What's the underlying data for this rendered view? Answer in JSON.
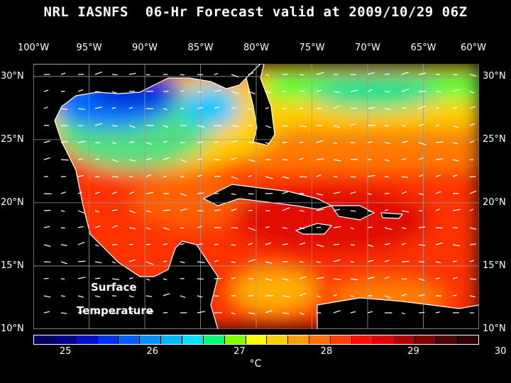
{
  "title": "NRL IASNFS  06-Hr Forecast valid at 2009/10/29 06Z",
  "lon_labels": [
    "100°W",
    "95°W",
    "90°W",
    "85°W",
    "80°W",
    "75°W",
    "70°W",
    "65°W",
    "60°W"
  ],
  "lat_labels": [
    "30°N",
    "25°N",
    "20°N",
    "15°N",
    "10°N"
  ],
  "overlay": {
    "line1": "Surface",
    "line2": "Temperature"
  },
  "colorbar": {
    "labels": [
      "25",
      "26",
      "27",
      "28",
      "29",
      "30"
    ],
    "unit": "°C",
    "colors": [
      "#000060",
      "#00008c",
      "#0010c8",
      "#0030f0",
      "#0060ff",
      "#0090ff",
      "#00b8ff",
      "#00e0ff",
      "#00ff70",
      "#80ff00",
      "#ffff00",
      "#ffd000",
      "#ffa000",
      "#ff7000",
      "#ff4000",
      "#ff1000",
      "#e00000",
      "#b00000",
      "#800000",
      "#500000",
      "#300000"
    ]
  },
  "map": {
    "lon_range": [
      -100,
      -60
    ],
    "lat_range": [
      10,
      31
    ],
    "variable": "sea surface temperature",
    "vector_field": "surface currents"
  }
}
